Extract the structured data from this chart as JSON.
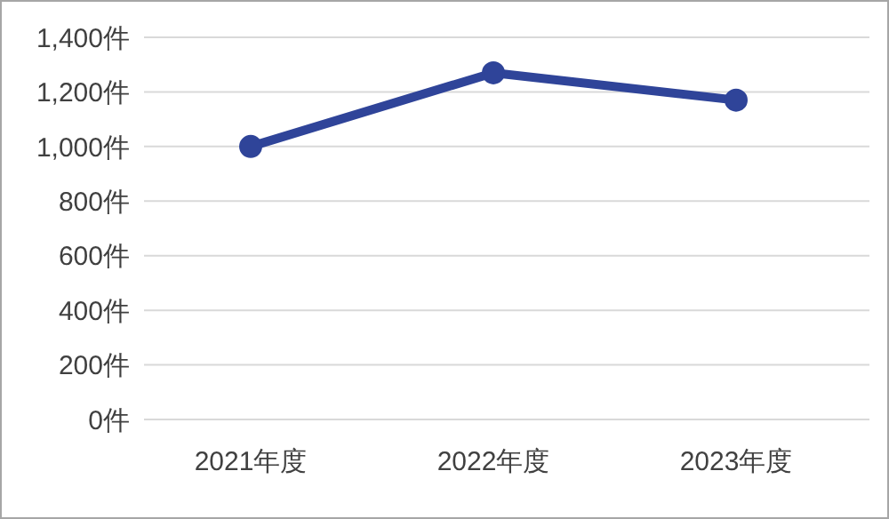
{
  "chart_data": {
    "type": "line",
    "categories": [
      "2021年度",
      "2022年度",
      "2023年度"
    ],
    "series": [
      {
        "color": "#2f4499",
        "values": [
          1000,
          1270,
          1170
        ]
      }
    ],
    "ylim": [
      0,
      1400
    ],
    "yticks": [
      {
        "value": 0,
        "label": "0件"
      },
      {
        "value": 200,
        "label": "200件"
      },
      {
        "value": 400,
        "label": "400件"
      },
      {
        "value": 600,
        "label": "600件"
      },
      {
        "value": 800,
        "label": "800件"
      },
      {
        "value": 1000,
        "label": "1,000件"
      },
      {
        "value": 1200,
        "label": "1,200件"
      },
      {
        "value": 1400,
        "label": "1,400件"
      }
    ],
    "grid": "y",
    "legend": false,
    "marker": "circle",
    "line_style": "solid"
  }
}
